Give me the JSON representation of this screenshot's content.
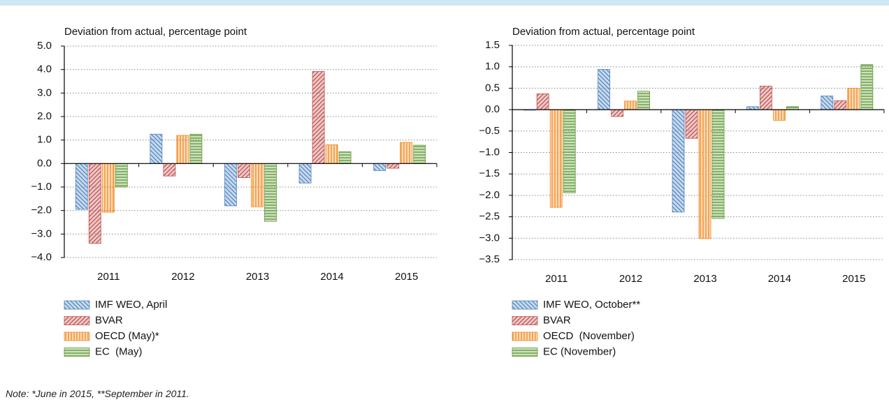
{
  "chart_data": [
    {
      "type": "bar",
      "title": "Deviation from actual, percentage point",
      "categories": [
        "2011",
        "2012",
        "2013",
        "2014",
        "2015"
      ],
      "series": [
        {
          "name": "IMF WEO, April",
          "color": "#4f86c0",
          "values": [
            -1.95,
            1.25,
            -1.8,
            -0.83,
            -0.3
          ]
        },
        {
          "name": "BVAR",
          "color": "#c0504d",
          "values": [
            -3.4,
            -0.53,
            -0.6,
            3.92,
            -0.2
          ]
        },
        {
          "name": "OECD (May)*",
          "color": "#f28a1e",
          "values": [
            -2.07,
            1.2,
            -1.84,
            0.8,
            0.9
          ]
        },
        {
          "name": "EC  (May)",
          "color": "#5f9a35",
          "values": [
            -1.0,
            1.25,
            -2.46,
            0.5,
            0.78
          ]
        }
      ],
      "ylim": [
        -4,
        5
      ],
      "yticks": [
        {
          "value": 5,
          "label": "5.0"
        },
        {
          "value": 4,
          "label": "4.0"
        },
        {
          "value": 3,
          "label": "3.0"
        },
        {
          "value": 2,
          "label": "2.0"
        },
        {
          "value": 1,
          "label": "1.0"
        },
        {
          "value": 0,
          "label": "0.0"
        },
        {
          "value": -1,
          "label": "−1.0"
        },
        {
          "value": -2,
          "label": "−2.0"
        },
        {
          "value": -3,
          "label": "−3.0"
        },
        {
          "value": -4,
          "label": "−4.0"
        }
      ],
      "grid": true
    },
    {
      "type": "bar",
      "title": "Deviation from actual, percentage point",
      "categories": [
        "2011",
        "2012",
        "2013",
        "2014",
        "2015"
      ],
      "series": [
        {
          "name": "IMF WEO, October**",
          "color": "#4f86c0",
          "values": [
            -0.01,
            0.94,
            -2.39,
            0.07,
            0.32
          ]
        },
        {
          "name": "BVAR",
          "color": "#c0504d",
          "values": [
            0.37,
            -0.16,
            -0.67,
            0.55,
            0.21
          ]
        },
        {
          "name": "OECD  (November)",
          "color": "#f28a1e",
          "values": [
            -2.28,
            0.2,
            -3.01,
            -0.25,
            0.5
          ]
        },
        {
          "name": "EC (November)",
          "color": "#5f9a35",
          "values": [
            -1.94,
            0.43,
            -2.54,
            0.07,
            1.05
          ]
        }
      ],
      "ylim": [
        -3.5,
        1.5
      ],
      "yticks": [
        {
          "value": 1.5,
          "label": "1.5"
        },
        {
          "value": 1,
          "label": "1.0"
        },
        {
          "value": 0.5,
          "label": "0.5"
        },
        {
          "value": 0,
          "label": "0.0"
        },
        {
          "value": -0.5,
          "label": "−0.5"
        },
        {
          "value": -1,
          "label": "−1.0"
        },
        {
          "value": -1.5,
          "label": "−1.5"
        },
        {
          "value": -2,
          "label": "−2.0"
        },
        {
          "value": -2.5,
          "label": "−2.5"
        },
        {
          "value": -3,
          "label": "−3.0"
        },
        {
          "value": -3.5,
          "label": "−3.5"
        }
      ],
      "grid": true
    }
  ],
  "note": "Note: *June in 2015, **September in 2011."
}
